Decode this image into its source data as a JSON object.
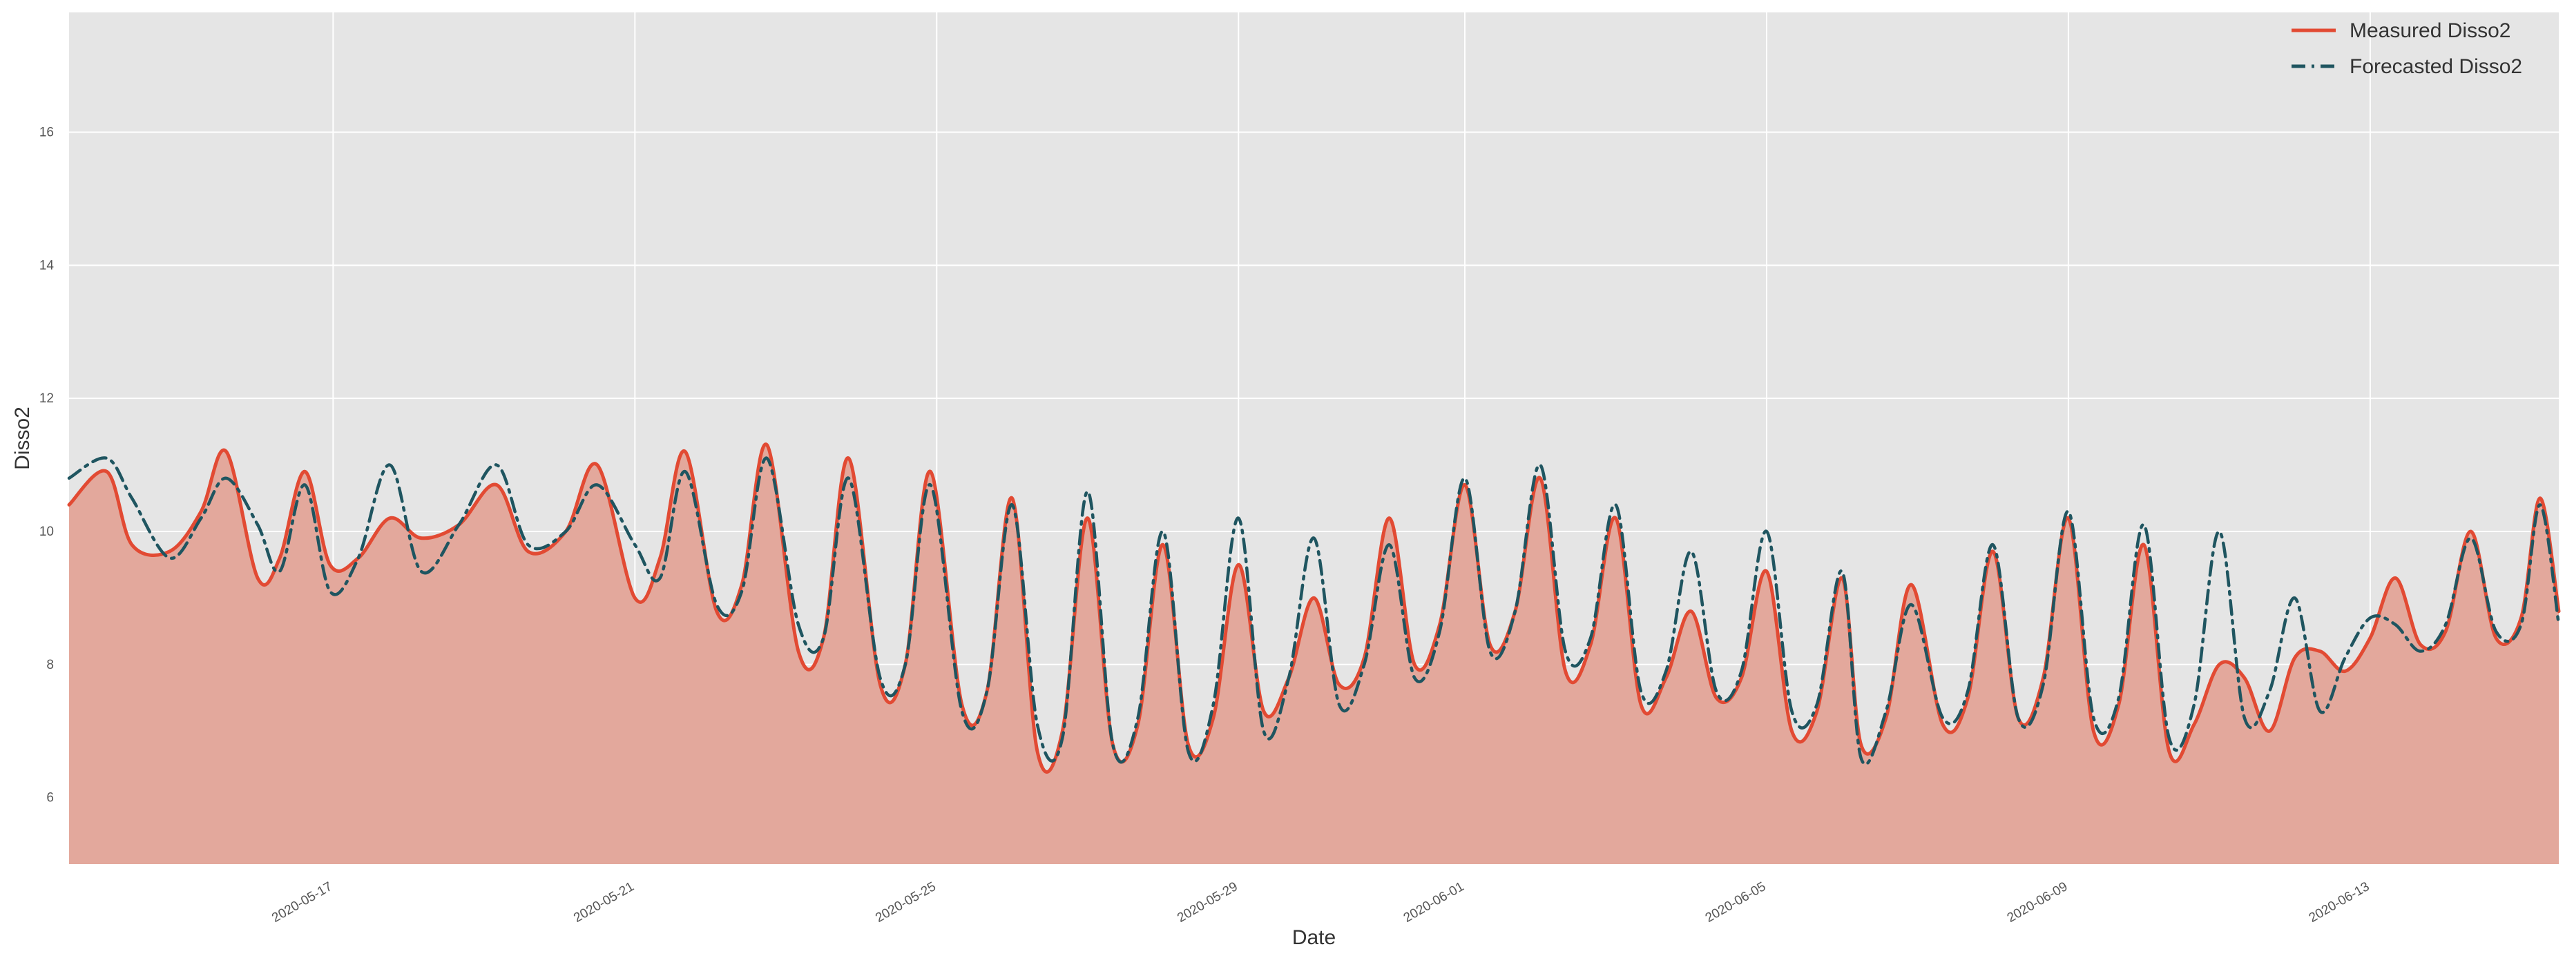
{
  "colors": {
    "plot_background": "#e5e5e5",
    "grid": "#ffffff",
    "measured_line": "#e24a33",
    "measured_fill": "#e3a89c",
    "forecast_line": "#1f5560"
  },
  "chart_data": {
    "type": "line",
    "title": "",
    "xlabel": "Date",
    "ylabel": "Disso2",
    "xlim": [
      "2020-05-13T12:00",
      "2020-06-15T12:00"
    ],
    "ylim": [
      5.0,
      17.8
    ],
    "grid": true,
    "legend_position": "top-right",
    "y_ticks": [
      6,
      8,
      10,
      12,
      14,
      16
    ],
    "x_ticks": [
      "2020-05-17",
      "2020-05-21",
      "2020-05-25",
      "2020-05-29",
      "2020-06-01",
      "2020-06-05",
      "2020-06-09",
      "2020-06-13"
    ],
    "series": [
      {
        "name": "Measured Disso2",
        "style": "solid",
        "filled": true,
        "points": [
          [
            "2020-05-13T12:00",
            10.4
          ],
          [
            "2020-05-14T00:00",
            10.9
          ],
          [
            "2020-05-14T08:00",
            9.8
          ],
          [
            "2020-05-14T20:00",
            9.7
          ],
          [
            "2020-05-15T06:00",
            10.3
          ],
          [
            "2020-05-15T14:00",
            11.2
          ],
          [
            "2020-05-16T00:00",
            9.3
          ],
          [
            "2020-05-16T07:00",
            9.6
          ],
          [
            "2020-05-16T15:00",
            10.9
          ],
          [
            "2020-05-16T23:00",
            9.5
          ],
          [
            "2020-05-17T08:00",
            9.6
          ],
          [
            "2020-05-17T18:00",
            10.2
          ],
          [
            "2020-05-18T04:00",
            9.9
          ],
          [
            "2020-05-18T16:00",
            10.1
          ],
          [
            "2020-05-19T04:00",
            10.7
          ],
          [
            "2020-05-19T14:00",
            9.7
          ],
          [
            "2020-05-20T02:00",
            10.0
          ],
          [
            "2020-05-20T12:00",
            11.0
          ],
          [
            "2020-05-21T00:00",
            9.0
          ],
          [
            "2020-05-21T08:00",
            9.6
          ],
          [
            "2020-05-21T16:00",
            11.2
          ],
          [
            "2020-05-22T02:00",
            8.8
          ],
          [
            "2020-05-22T10:00",
            9.2
          ],
          [
            "2020-05-22T18:00",
            11.3
          ],
          [
            "2020-05-23T04:00",
            8.2
          ],
          [
            "2020-05-23T12:00",
            8.4
          ],
          [
            "2020-05-23T20:00",
            11.1
          ],
          [
            "2020-05-24T06:00",
            7.7
          ],
          [
            "2020-05-24T14:00",
            8.0
          ],
          [
            "2020-05-24T22:00",
            10.9
          ],
          [
            "2020-05-25T08:00",
            7.4
          ],
          [
            "2020-05-25T16:00",
            7.6
          ],
          [
            "2020-05-26T00:00",
            10.5
          ],
          [
            "2020-05-26T08:00",
            6.7
          ],
          [
            "2020-05-26T16:00",
            7.0
          ],
          [
            "2020-05-27T00:00",
            10.2
          ],
          [
            "2020-05-27T08:00",
            6.8
          ],
          [
            "2020-05-27T16:00",
            7.1
          ],
          [
            "2020-05-28T00:00",
            9.8
          ],
          [
            "2020-05-28T08:00",
            6.8
          ],
          [
            "2020-05-28T16:00",
            7.2
          ],
          [
            "2020-05-29T00:00",
            9.5
          ],
          [
            "2020-05-29T08:00",
            7.3
          ],
          [
            "2020-05-29T16:00",
            7.8
          ],
          [
            "2020-05-30T00:00",
            9.0
          ],
          [
            "2020-05-30T08:00",
            7.7
          ],
          [
            "2020-05-30T16:00",
            8.1
          ],
          [
            "2020-05-31T00:00",
            10.2
          ],
          [
            "2020-05-31T08:00",
            8.0
          ],
          [
            "2020-05-31T16:00",
            8.6
          ],
          [
            "2020-06-01T00:00",
            10.7
          ],
          [
            "2020-06-01T08:00",
            8.3
          ],
          [
            "2020-06-01T16:00",
            8.8
          ],
          [
            "2020-06-02T00:00",
            10.8
          ],
          [
            "2020-06-02T08:00",
            7.9
          ],
          [
            "2020-06-02T16:00",
            8.3
          ],
          [
            "2020-06-03T00:00",
            10.2
          ],
          [
            "2020-06-03T08:00",
            7.4
          ],
          [
            "2020-06-03T16:00",
            7.8
          ],
          [
            "2020-06-04T00:00",
            8.8
          ],
          [
            "2020-06-04T08:00",
            7.5
          ],
          [
            "2020-06-04T16:00",
            7.8
          ],
          [
            "2020-06-05T00:00",
            9.4
          ],
          [
            "2020-06-05T08:00",
            7.0
          ],
          [
            "2020-06-05T16:00",
            7.3
          ],
          [
            "2020-06-06T00:00",
            9.3
          ],
          [
            "2020-06-06T06:00",
            6.8
          ],
          [
            "2020-06-06T14:00",
            7.2
          ],
          [
            "2020-06-06T22:00",
            9.2
          ],
          [
            "2020-06-07T08:00",
            7.1
          ],
          [
            "2020-06-07T16:00",
            7.5
          ],
          [
            "2020-06-08T00:00",
            9.7
          ],
          [
            "2020-06-08T08:00",
            7.2
          ],
          [
            "2020-06-08T16:00",
            7.8
          ],
          [
            "2020-06-09T00:00",
            10.2
          ],
          [
            "2020-06-09T08:00",
            7.0
          ],
          [
            "2020-06-09T16:00",
            7.4
          ],
          [
            "2020-06-10T00:00",
            9.8
          ],
          [
            "2020-06-10T08:00",
            6.7
          ],
          [
            "2020-06-10T16:00",
            7.1
          ],
          [
            "2020-06-11T00:00",
            8.0
          ],
          [
            "2020-06-11T08:00",
            7.8
          ],
          [
            "2020-06-11T16:00",
            7.0
          ],
          [
            "2020-06-12T00:00",
            8.1
          ],
          [
            "2020-06-12T08:00",
            8.2
          ],
          [
            "2020-06-12T16:00",
            7.9
          ],
          [
            "2020-06-13T00:00",
            8.4
          ],
          [
            "2020-06-13T08:00",
            9.3
          ],
          [
            "2020-06-13T16:00",
            8.3
          ],
          [
            "2020-06-14T00:00",
            8.5
          ],
          [
            "2020-06-14T08:00",
            10.0
          ],
          [
            "2020-06-14T16:00",
            8.4
          ],
          [
            "2020-06-15T00:00",
            8.7
          ],
          [
            "2020-06-15T06:00",
            10.5
          ],
          [
            "2020-06-15T12:00",
            8.8
          ]
        ]
      },
      {
        "name": "Forecasted Disso2",
        "style": "dashdot",
        "filled": false,
        "points": [
          [
            "2020-05-13T12:00",
            10.8
          ],
          [
            "2020-05-14T00:00",
            11.1
          ],
          [
            "2020-05-14T08:00",
            10.5
          ],
          [
            "2020-05-14T20:00",
            9.6
          ],
          [
            "2020-05-15T06:00",
            10.2
          ],
          [
            "2020-05-15T14:00",
            10.8
          ],
          [
            "2020-05-16T00:00",
            10.1
          ],
          [
            "2020-05-16T07:00",
            9.4
          ],
          [
            "2020-05-16T15:00",
            10.7
          ],
          [
            "2020-05-16T23:00",
            9.1
          ],
          [
            "2020-05-17T08:00",
            9.6
          ],
          [
            "2020-05-17T18:00",
            11.0
          ],
          [
            "2020-05-18T04:00",
            9.4
          ],
          [
            "2020-05-18T16:00",
            10.1
          ],
          [
            "2020-05-19T04:00",
            11.0
          ],
          [
            "2020-05-19T14:00",
            9.8
          ],
          [
            "2020-05-20T02:00",
            10.0
          ],
          [
            "2020-05-20T12:00",
            10.7
          ],
          [
            "2020-05-21T00:00",
            9.8
          ],
          [
            "2020-05-21T08:00",
            9.3
          ],
          [
            "2020-05-21T16:00",
            10.9
          ],
          [
            "2020-05-22T02:00",
            8.9
          ],
          [
            "2020-05-22T10:00",
            9.1
          ],
          [
            "2020-05-22T18:00",
            11.1
          ],
          [
            "2020-05-23T04:00",
            8.6
          ],
          [
            "2020-05-23T12:00",
            8.4
          ],
          [
            "2020-05-23T20:00",
            10.8
          ],
          [
            "2020-05-24T06:00",
            7.8
          ],
          [
            "2020-05-24T14:00",
            8.0
          ],
          [
            "2020-05-24T22:00",
            10.7
          ],
          [
            "2020-05-25T08:00",
            7.3
          ],
          [
            "2020-05-25T16:00",
            7.6
          ],
          [
            "2020-05-26T00:00",
            10.4
          ],
          [
            "2020-05-26T08:00",
            7.1
          ],
          [
            "2020-05-26T16:00",
            6.9
          ],
          [
            "2020-05-27T00:00",
            10.6
          ],
          [
            "2020-05-27T08:00",
            6.8
          ],
          [
            "2020-05-27T16:00",
            7.2
          ],
          [
            "2020-05-28T00:00",
            10.0
          ],
          [
            "2020-05-28T08:00",
            6.7
          ],
          [
            "2020-05-28T16:00",
            7.4
          ],
          [
            "2020-05-29T00:00",
            10.2
          ],
          [
            "2020-05-29T08:00",
            7.0
          ],
          [
            "2020-05-29T16:00",
            7.8
          ],
          [
            "2020-05-30T00:00",
            9.9
          ],
          [
            "2020-05-30T08:00",
            7.4
          ],
          [
            "2020-05-30T16:00",
            8.0
          ],
          [
            "2020-05-31T00:00",
            9.8
          ],
          [
            "2020-05-31T08:00",
            7.8
          ],
          [
            "2020-05-31T16:00",
            8.5
          ],
          [
            "2020-06-01T00:00",
            10.8
          ],
          [
            "2020-06-01T08:00",
            8.2
          ],
          [
            "2020-06-01T16:00",
            8.8
          ],
          [
            "2020-06-02T00:00",
            11.0
          ],
          [
            "2020-06-02T08:00",
            8.2
          ],
          [
            "2020-06-02T16:00",
            8.4
          ],
          [
            "2020-06-03T00:00",
            10.4
          ],
          [
            "2020-06-03T08:00",
            7.6
          ],
          [
            "2020-06-03T16:00",
            7.9
          ],
          [
            "2020-06-04T00:00",
            9.7
          ],
          [
            "2020-06-04T08:00",
            7.6
          ],
          [
            "2020-06-04T16:00",
            7.9
          ],
          [
            "2020-06-05T00:00",
            10.0
          ],
          [
            "2020-06-05T08:00",
            7.3
          ],
          [
            "2020-06-05T16:00",
            7.4
          ],
          [
            "2020-06-06T00:00",
            9.4
          ],
          [
            "2020-06-06T06:00",
            6.6
          ],
          [
            "2020-06-06T14:00",
            7.3
          ],
          [
            "2020-06-06T22:00",
            8.9
          ],
          [
            "2020-06-07T08:00",
            7.2
          ],
          [
            "2020-06-07T16:00",
            7.6
          ],
          [
            "2020-06-08T00:00",
            9.8
          ],
          [
            "2020-06-08T08:00",
            7.2
          ],
          [
            "2020-06-08T16:00",
            7.7
          ],
          [
            "2020-06-09T00:00",
            10.3
          ],
          [
            "2020-06-09T08:00",
            7.2
          ],
          [
            "2020-06-09T16:00",
            7.5
          ],
          [
            "2020-06-10T00:00",
            10.1
          ],
          [
            "2020-06-10T08:00",
            6.9
          ],
          [
            "2020-06-10T16:00",
            7.4
          ],
          [
            "2020-06-11T00:00",
            10.0
          ],
          [
            "2020-06-11T08:00",
            7.2
          ],
          [
            "2020-06-11T16:00",
            7.6
          ],
          [
            "2020-06-12T00:00",
            9.0
          ],
          [
            "2020-06-12T08:00",
            7.3
          ],
          [
            "2020-06-12T16:00",
            8.1
          ],
          [
            "2020-06-13T00:00",
            8.7
          ],
          [
            "2020-06-13T08:00",
            8.6
          ],
          [
            "2020-06-13T16:00",
            8.2
          ],
          [
            "2020-06-14T00:00",
            8.6
          ],
          [
            "2020-06-14T08:00",
            9.9
          ],
          [
            "2020-06-14T16:00",
            8.5
          ],
          [
            "2020-06-15T00:00",
            8.6
          ],
          [
            "2020-06-15T06:00",
            10.4
          ],
          [
            "2020-06-15T12:00",
            8.6
          ]
        ]
      }
    ]
  }
}
